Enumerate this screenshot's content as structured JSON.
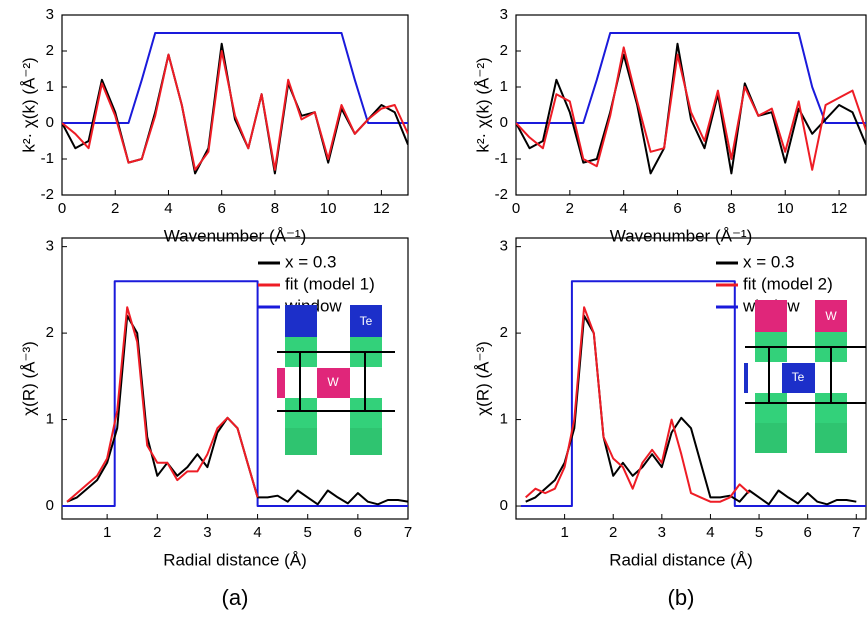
{
  "chart_data": [
    {
      "type": "line",
      "xlabel": "Wavenumber (Å⁻¹)",
      "ylabel": "k²· χ(k) (Å⁻²)",
      "x": [
        0,
        0.5,
        1,
        1.5,
        2,
        2.5,
        3,
        3.5,
        4,
        4.5,
        5,
        5.5,
        6,
        6.5,
        7,
        7.5,
        8,
        8.5,
        9,
        9.5,
        10,
        10.5,
        11,
        11.5,
        12,
        12.5,
        13
      ],
      "xlim": [
        0,
        13
      ],
      "xticks": [
        0,
        2,
        4,
        6,
        8,
        10,
        12
      ],
      "ylim": [
        -2,
        3
      ],
      "yticks": [
        -2,
        -1,
        0,
        1,
        2,
        3
      ],
      "series": [
        {
          "name": "x = 0.3",
          "color": "#000000",
          "values": [
            0,
            -0.7,
            -0.5,
            1.2,
            0.3,
            -1.1,
            -1.0,
            0.3,
            1.9,
            0.5,
            -1.4,
            -0.7,
            2.2,
            0.1,
            -0.7,
            0.8,
            -1.4,
            1.1,
            0.2,
            0.3,
            -1.1,
            0.4,
            -0.3,
            0.1,
            0.5,
            0.3,
            -0.6
          ]
        },
        {
          "name": "fit (model 1)",
          "color": "#ee1c25",
          "values": [
            0,
            -0.3,
            -0.7,
            1.1,
            0.2,
            -1.1,
            -1.0,
            0.2,
            1.9,
            0.5,
            -1.3,
            -0.8,
            2.0,
            0.2,
            -0.7,
            0.8,
            -1.3,
            1.2,
            0.1,
            0.3,
            -1.0,
            0.5,
            -0.3,
            0.1,
            0.4,
            0.5,
            -0.3
          ]
        },
        {
          "name": "window",
          "color": "#1a1adb",
          "values": [
            0,
            0,
            0,
            0,
            0,
            0,
            1.2,
            2.5,
            2.5,
            2.5,
            2.5,
            2.5,
            2.5,
            2.5,
            2.5,
            2.5,
            2.5,
            2.5,
            2.5,
            2.5,
            2.5,
            2.5,
            1.2,
            0,
            0,
            0,
            0
          ]
        }
      ]
    },
    {
      "type": "line",
      "xlabel": "Wavenumber (Å⁻¹)",
      "ylabel": "k²· χ(k) (Å⁻²)",
      "x": [
        0,
        0.5,
        1,
        1.5,
        2,
        2.5,
        3,
        3.5,
        4,
        4.5,
        5,
        5.5,
        6,
        6.5,
        7,
        7.5,
        8,
        8.5,
        9,
        9.5,
        10,
        10.5,
        11,
        11.5,
        12,
        12.5,
        13
      ],
      "xlim": [
        0,
        13
      ],
      "xticks": [
        0,
        2,
        4,
        6,
        8,
        10,
        12
      ],
      "ylim": [
        -2,
        3
      ],
      "yticks": [
        -2,
        -1,
        0,
        1,
        2,
        3
      ],
      "series": [
        {
          "name": "x = 0.3",
          "color": "#000000",
          "values": [
            0,
            -0.7,
            -0.5,
            1.2,
            0.3,
            -1.1,
            -1.0,
            0.3,
            1.9,
            0.5,
            -1.4,
            -0.7,
            2.2,
            0.1,
            -0.7,
            0.8,
            -1.4,
            1.1,
            0.2,
            0.3,
            -1.1,
            0.4,
            -0.3,
            0.1,
            0.5,
            0.3,
            -0.6
          ]
        },
        {
          "name": "fit (model 2)",
          "color": "#ee1c25",
          "values": [
            0,
            -0.4,
            -0.7,
            0.8,
            0.6,
            -1.0,
            -1.2,
            0.2,
            2.1,
            0.6,
            -0.8,
            -0.7,
            1.9,
            0.3,
            -0.5,
            0.9,
            -1.0,
            1.0,
            0.2,
            0.4,
            -0.8,
            0.6,
            -1.3,
            0.5,
            0.7,
            0.9,
            -0.2
          ]
        },
        {
          "name": "window",
          "color": "#1a1adb",
          "values": [
            0,
            0,
            0,
            0,
            0,
            0,
            1.2,
            2.5,
            2.5,
            2.5,
            2.5,
            2.5,
            2.5,
            2.5,
            2.5,
            2.5,
            2.5,
            2.5,
            2.5,
            2.5,
            2.5,
            2.5,
            1.0,
            0,
            0,
            0,
            0
          ]
        }
      ]
    },
    {
      "type": "line",
      "xlabel": "Radial distance (Å)",
      "ylabel": "χ(R) (Å⁻³)",
      "caption": "(a)",
      "legend": "upper right",
      "annotations": [
        "Te",
        "W"
      ],
      "x": [
        0.2,
        0.4,
        0.6,
        0.8,
        1.0,
        1.2,
        1.4,
        1.6,
        1.8,
        2.0,
        2.2,
        2.4,
        2.6,
        2.8,
        3.0,
        3.2,
        3.4,
        3.6,
        3.8,
        4.0,
        4.2,
        4.4,
        4.6,
        4.8,
        5.0,
        5.2,
        5.4,
        5.6,
        5.8,
        6.0,
        6.2,
        6.4,
        6.6,
        6.8,
        7.0
      ],
      "xlim": [
        0.1,
        7
      ],
      "xticks": [
        1,
        2,
        3,
        4,
        5,
        6,
        7
      ],
      "ylim": [
        -0.15,
        3.1
      ],
      "yticks": [
        0,
        1,
        2,
        3
      ],
      "series": [
        {
          "name": "x = 0.3",
          "color": "#000000",
          "values": [
            0.05,
            0.1,
            0.2,
            0.3,
            0.5,
            0.9,
            2.2,
            2.0,
            0.8,
            0.35,
            0.5,
            0.35,
            0.45,
            0.6,
            0.45,
            0.85,
            1.02,
            0.9,
            0.5,
            0.1,
            0.1,
            0.12,
            0.05,
            0.18,
            0.1,
            0.02,
            0.18,
            0.1,
            0.03,
            0.15,
            0.05,
            0.02,
            0.07,
            0.07,
            0.05
          ]
        },
        {
          "name": "fit (model 1)",
          "color": "#ee1c25",
          "values": [
            0.05,
            0.15,
            0.25,
            0.35,
            0.55,
            1.1,
            2.3,
            1.9,
            0.7,
            0.5,
            0.5,
            0.3,
            0.4,
            0.4,
            0.6,
            0.9,
            1.02,
            0.9,
            0.5,
            0.1,
            null,
            null,
            null,
            null,
            null,
            null,
            null,
            null,
            null,
            null,
            null,
            null,
            null,
            null,
            null
          ]
        },
        {
          "name": "window",
          "color": "#1a1adb",
          "x": [
            0.1,
            1.15,
            1.15,
            4.0,
            4.0,
            7.0
          ],
          "values": [
            0,
            0,
            2.6,
            2.6,
            0,
            0
          ]
        }
      ]
    },
    {
      "type": "line",
      "xlabel": "Radial distance (Å)",
      "ylabel": "χ(R) (Å⁻³)",
      "caption": "(b)",
      "legend": "upper right",
      "annotations": [
        "W",
        "Te"
      ],
      "x": [
        0.2,
        0.4,
        0.6,
        0.8,
        1.0,
        1.2,
        1.4,
        1.6,
        1.8,
        2.0,
        2.2,
        2.4,
        2.6,
        2.8,
        3.0,
        3.2,
        3.4,
        3.6,
        3.8,
        4.0,
        4.2,
        4.4,
        4.6,
        4.8,
        5.0,
        5.2,
        5.4,
        5.6,
        5.8,
        6.0,
        6.2,
        6.4,
        6.6,
        6.8,
        7.0
      ],
      "xlim": [
        0,
        7.2
      ],
      "xticks": [
        1,
        2,
        3,
        4,
        5,
        6,
        7
      ],
      "ylim": [
        -0.15,
        3.1
      ],
      "yticks": [
        0,
        1,
        2,
        3
      ],
      "series": [
        {
          "name": "x = 0.3",
          "color": "#000000",
          "values": [
            0.05,
            0.1,
            0.2,
            0.3,
            0.5,
            0.9,
            2.2,
            2.0,
            0.8,
            0.35,
            0.5,
            0.35,
            0.45,
            0.6,
            0.45,
            0.85,
            1.02,
            0.9,
            0.5,
            0.1,
            0.1,
            0.12,
            0.05,
            0.18,
            0.1,
            0.02,
            0.18,
            0.1,
            0.03,
            0.15,
            0.05,
            0.02,
            0.07,
            0.07,
            0.05
          ]
        },
        {
          "name": "fit (model 2)",
          "color": "#ee1c25",
          "values": [
            0.1,
            0.2,
            0.15,
            0.2,
            0.45,
            1.0,
            2.3,
            2.0,
            0.8,
            0.55,
            0.45,
            0.2,
            0.5,
            0.65,
            0.5,
            1.0,
            0.6,
            0.15,
            0.1,
            0.05,
            0.05,
            0.1,
            0.25,
            0.15,
            null,
            null,
            null,
            null,
            null,
            null,
            null,
            null,
            null,
            null,
            null
          ]
        },
        {
          "name": "window",
          "color": "#1a1adb",
          "x": [
            0.1,
            1.15,
            1.15,
            4.5,
            4.5,
            7.2
          ],
          "values": [
            0,
            0,
            2.6,
            2.6,
            0,
            0
          ]
        }
      ]
    }
  ]
}
